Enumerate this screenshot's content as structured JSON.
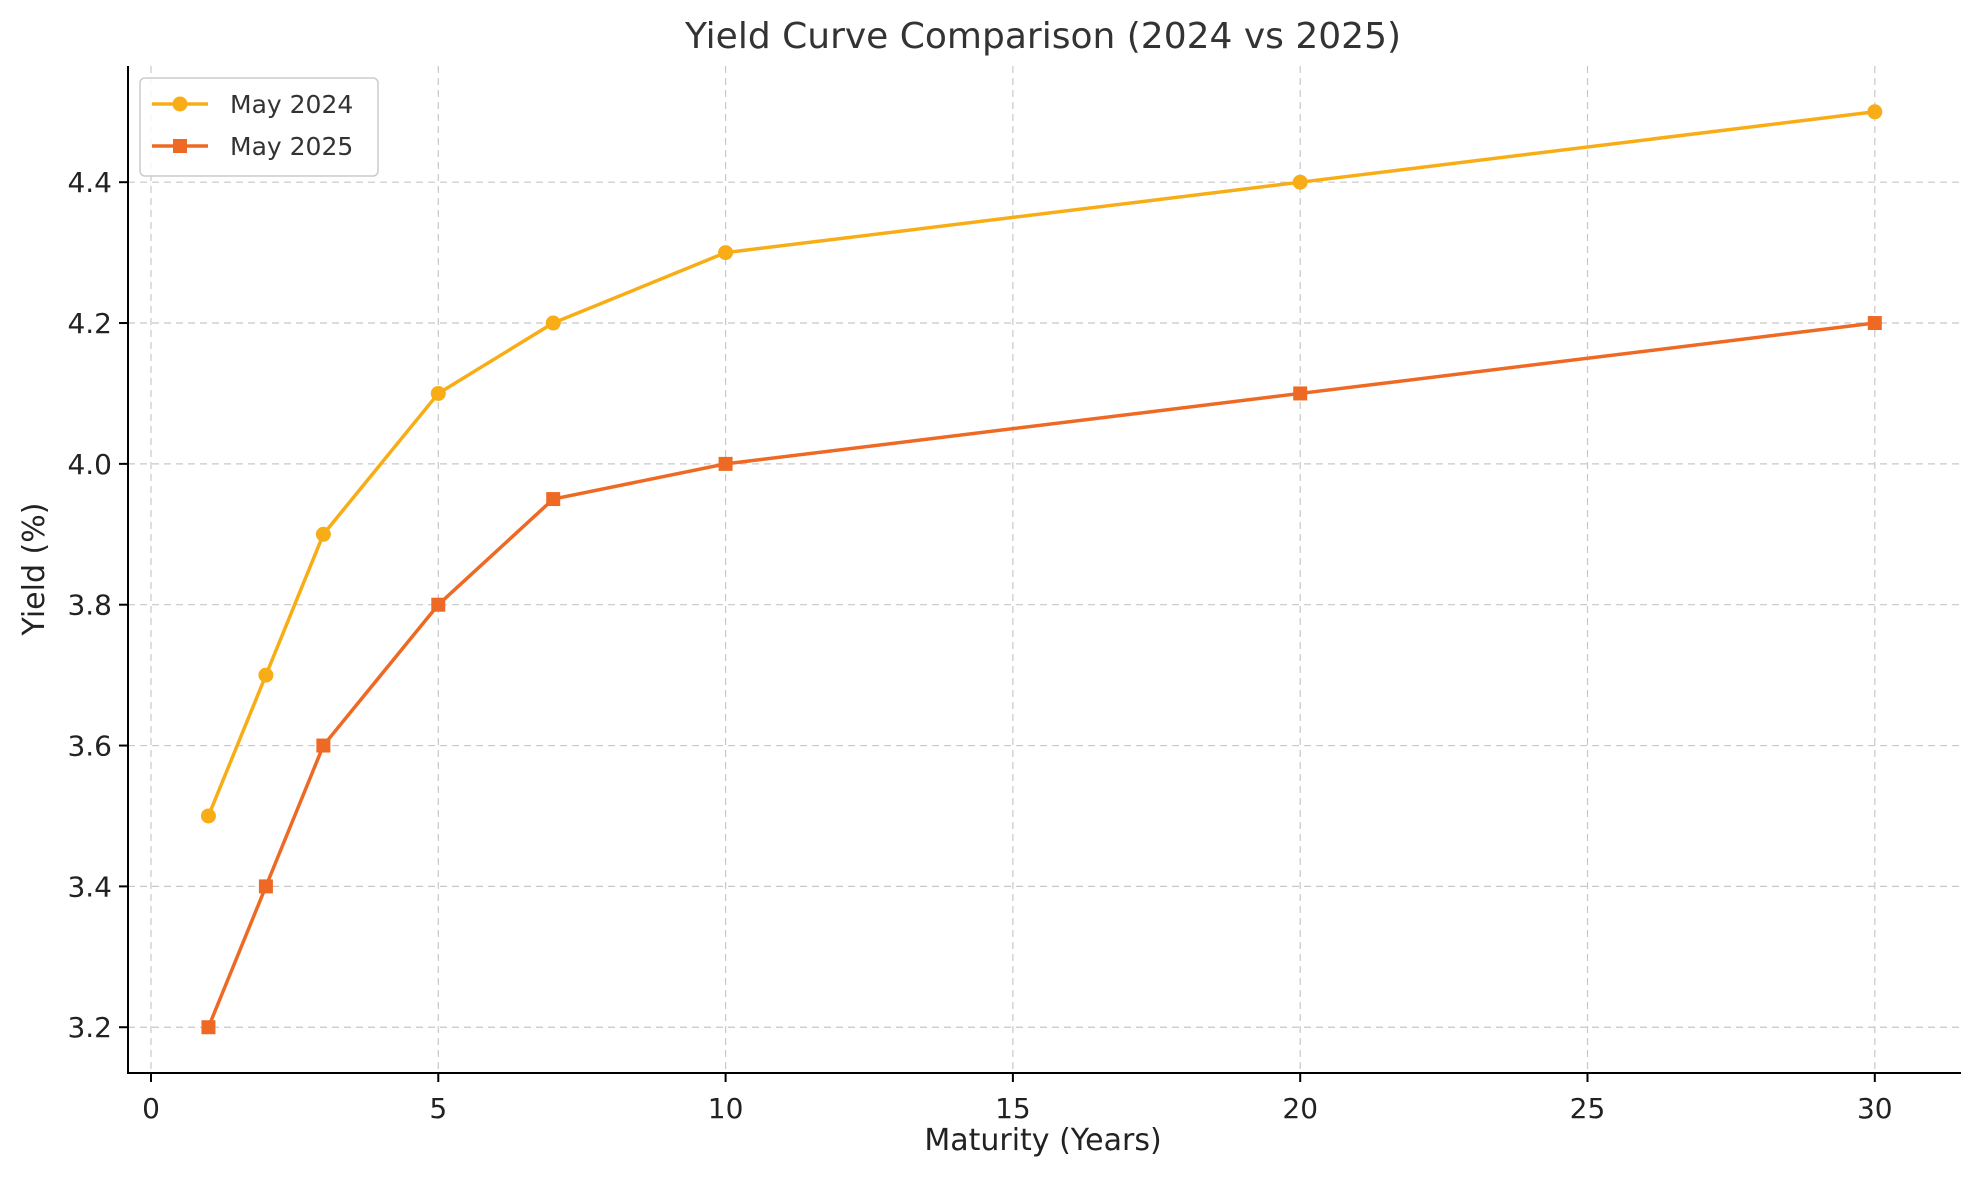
{
  "chart_data": {
    "type": "line",
    "title": "Yield Curve Comparison (2024 vs 2025)",
    "xlabel": "Maturity (Years)",
    "ylabel": "Yield (%)",
    "xlim": [
      -0.4,
      31.5
    ],
    "ylim": [
      3.135,
      4.565
    ],
    "x_ticks": [
      0,
      5,
      10,
      15,
      20,
      25,
      30
    ],
    "y_ticks": [
      3.2,
      3.4,
      3.6,
      3.8,
      4.0,
      4.2,
      4.4
    ],
    "y_tick_labels": [
      "3.2",
      "3.4",
      "3.6",
      "3.8",
      "4.0",
      "4.2",
      "4.4"
    ],
    "grid": true,
    "legend_position": "top-left",
    "x": [
      1,
      2,
      3,
      5,
      7,
      10,
      20,
      30
    ],
    "series": [
      {
        "name": "May 2024",
        "values": [
          3.5,
          3.7,
          3.9,
          4.1,
          4.2,
          4.3,
          4.4,
          4.5
        ],
        "color": "#F8AD16",
        "marker": "circle"
      },
      {
        "name": "May 2025",
        "values": [
          3.2,
          3.4,
          3.6,
          3.8,
          3.95,
          4.0,
          4.1,
          4.2
        ],
        "color": "#EE6A24",
        "marker": "square"
      }
    ]
  }
}
